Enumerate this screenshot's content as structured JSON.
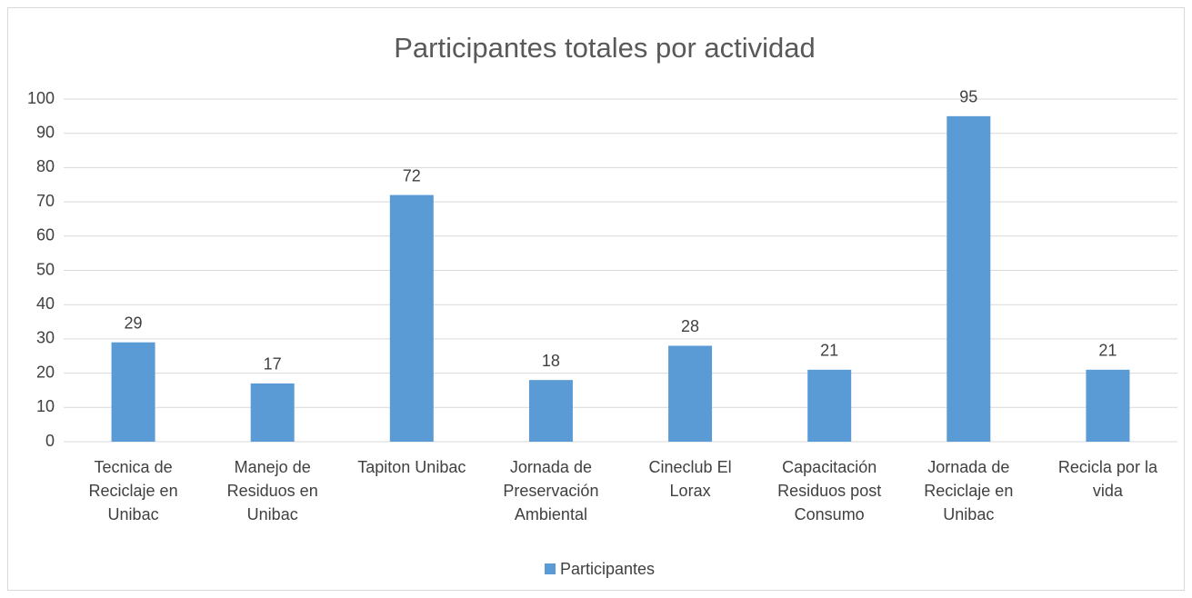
{
  "chart_data": {
    "type": "bar",
    "title": "Participantes totales por actividad",
    "categories": [
      "Tecnica de Reciclaje en Unibac",
      "Manejo de Residuos en Unibac",
      "Tapiton Unibac",
      "Jornada de Preservación Ambiental",
      "Cineclub El Lorax",
      "Capacitación Residuos post Consumo",
      "Jornada de Reciclaje en Unibac",
      "Recicla por la vida"
    ],
    "series": [
      {
        "name": "Participantes",
        "color": "#5b9bd5",
        "values": [
          29,
          17,
          72,
          18,
          28,
          21,
          95,
          21
        ]
      }
    ],
    "ylim": [
      0,
      100
    ],
    "yticks": [
      0,
      10,
      20,
      30,
      40,
      50,
      60,
      70,
      80,
      90,
      100
    ],
    "grid": true,
    "data_labels": true,
    "legend": "bottom"
  }
}
